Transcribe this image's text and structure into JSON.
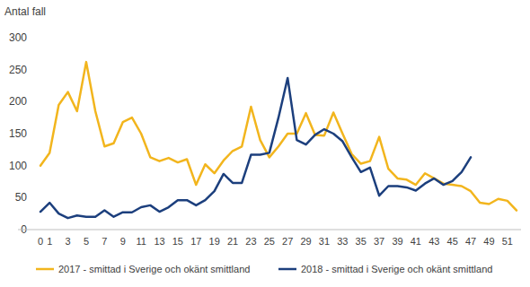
{
  "chart_data": {
    "type": "line",
    "y_label": "Antal fall",
    "categories": [
      "0",
      "1",
      null,
      "3",
      null,
      "5",
      null,
      "7",
      null,
      "9",
      null,
      "11",
      null,
      "13",
      null,
      "15",
      null,
      "17",
      null,
      "19",
      null,
      "21",
      null,
      "23",
      null,
      "25",
      null,
      "27",
      null,
      "29",
      null,
      "31",
      null,
      "33",
      null,
      "35",
      null,
      "37",
      null,
      "39",
      null,
      "41",
      null,
      "43",
      null,
      "45",
      null,
      "47",
      null,
      "49",
      null,
      "51",
      null
    ],
    "series": [
      {
        "name": "2017 - smittad i Sverige och okänt smittland",
        "color": "#f2b51d",
        "values": [
          100,
          120,
          195,
          215,
          185,
          262,
          185,
          130,
          135,
          168,
          175,
          150,
          113,
          107,
          112,
          105,
          110,
          70,
          102,
          88,
          108,
          123,
          130,
          192,
          140,
          113,
          130,
          150,
          150,
          182,
          148,
          147,
          183,
          150,
          118,
          103,
          107,
          145,
          95,
          80,
          78,
          70,
          88,
          80,
          72,
          70,
          68,
          60,
          42,
          40,
          48,
          45,
          30
        ]
      },
      {
        "name": "2018 - smittad i Sverige och okänt smittland",
        "color": "#1c3f7d",
        "values": [
          28,
          42,
          25,
          18,
          22,
          20,
          20,
          30,
          20,
          27,
          27,
          35,
          38,
          28,
          35,
          46,
          46,
          38,
          46,
          60,
          87,
          73,
          73,
          117,
          117,
          120,
          175,
          237,
          140,
          133,
          148,
          157,
          150,
          138,
          113,
          90,
          97,
          53,
          68,
          68,
          66,
          61,
          72,
          80,
          70,
          76,
          90,
          113,
          null,
          null,
          null,
          null,
          null
        ]
      }
    ],
    "ylim": [
      0,
      300
    ],
    "yticks": [
      0,
      50,
      100,
      150,
      200,
      250,
      300
    ],
    "grid": false,
    "legend": "bottom"
  }
}
